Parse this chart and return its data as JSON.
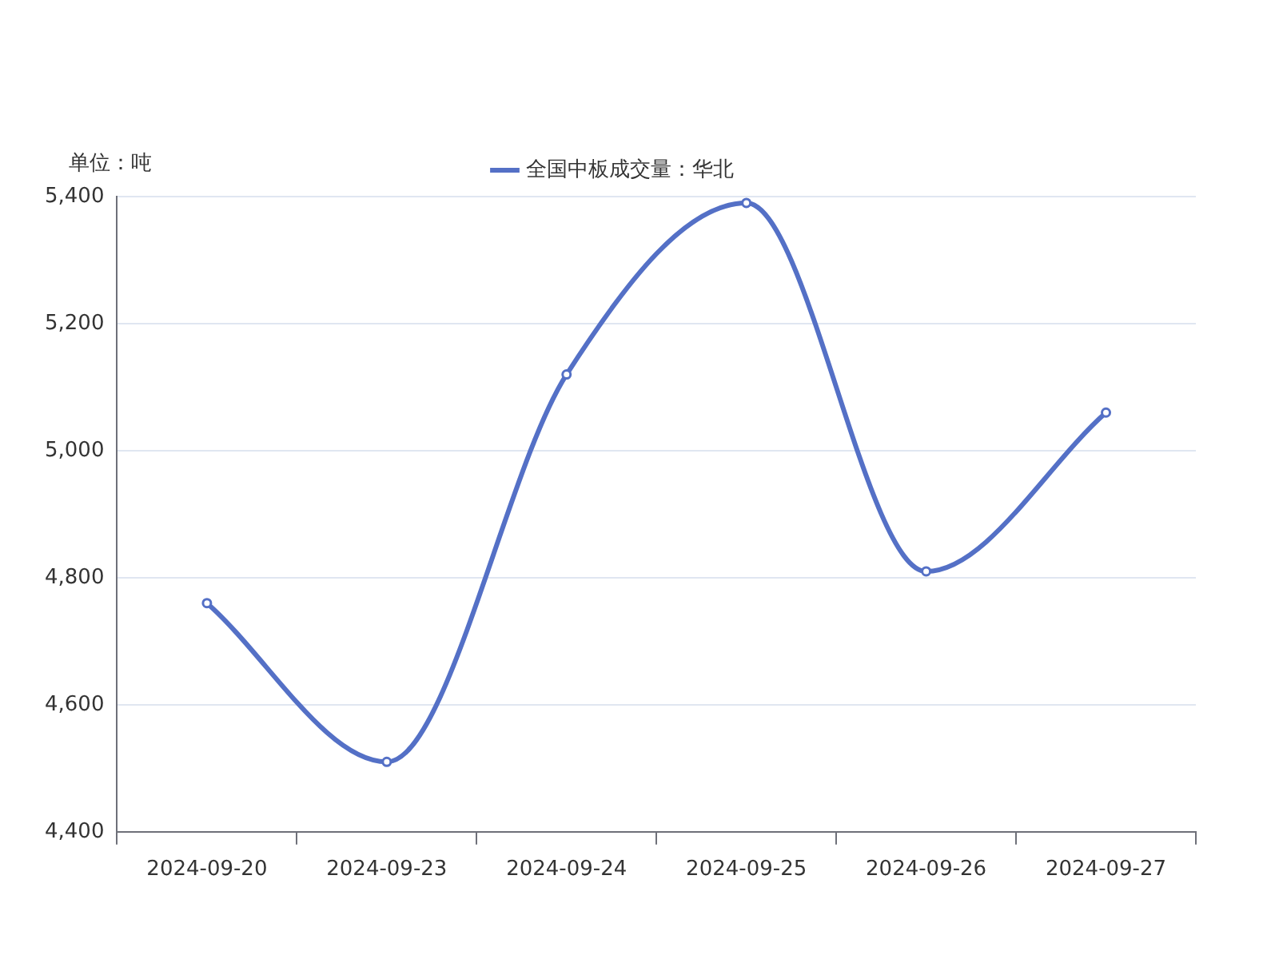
{
  "chart_data": {
    "type": "line",
    "ylabel": "单位：吨",
    "categories": [
      "2024-09-20",
      "2024-09-23",
      "2024-09-24",
      "2024-09-25",
      "2024-09-26",
      "2024-09-27"
    ],
    "series": [
      {
        "name": "全国中板成交量：华北",
        "color": "#5470c6",
        "values": [
          4760,
          4510,
          5120,
          5390,
          4810,
          5060
        ]
      }
    ],
    "ylim": [
      4400,
      5400
    ],
    "yticks": [
      {
        "value": 4400,
        "label": "4,400"
      },
      {
        "value": 4600,
        "label": "4,600"
      },
      {
        "value": 4800,
        "label": "4,800"
      },
      {
        "value": 5000,
        "label": "5,000"
      },
      {
        "value": 5200,
        "label": "5,200"
      },
      {
        "value": 5400,
        "label": "5,400"
      }
    ],
    "grid": "y",
    "legend": "top",
    "marker": "circle",
    "line_style": "solid"
  }
}
